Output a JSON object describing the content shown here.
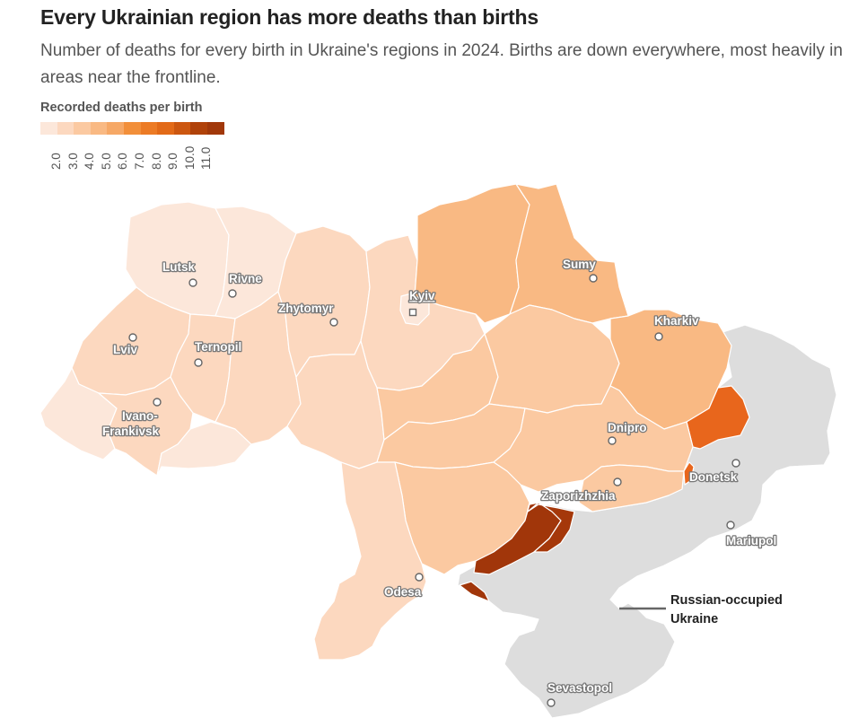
{
  "title": "Every Ukrainian region has more deaths than births",
  "subtitle": "Number of deaths for every birth in Ukraine's regions in 2024. Births are down everywhere, most heavily in areas near the frontline.",
  "legend": {
    "title": "Recorded deaths per birth",
    "ticks": [
      "2.0",
      "3.0",
      "4.0",
      "5.0",
      "6.0",
      "7.0",
      "8.0",
      "9.0",
      "10.0",
      "11.0"
    ],
    "colors": [
      "#fce7da",
      "#fcd8bf",
      "#fbc9a1",
      "#f9b983",
      "#f6a866",
      "#f28f3a",
      "#ec7b25",
      "#e26a18",
      "#cc5710",
      "#b0420a",
      "#a1380a"
    ]
  },
  "cities": {
    "lutsk": "Lutsk",
    "rivne": "Rivne",
    "zhytomyr": "Zhytomyr",
    "kyiv": "Kyiv",
    "sumy": "Sumy",
    "kharkiv": "Kharkiv",
    "lviv": "Lviv",
    "ternopil": "Ternopil",
    "ivano_line1": "Ivano-",
    "ivano_line2": "Frankivsk",
    "dnipro": "Dnipro",
    "donetsk": "Donetsk",
    "zaporizhzhia": "Zaporizhzhia",
    "mariupol": "Mariupol",
    "odesa": "Odesa",
    "sevastopol": "Sevastopol"
  },
  "annotation": {
    "line1": "Russian-occupied",
    "line2": "Ukraine"
  },
  "colors": {
    "occupied": "#dddddd",
    "lightest": "#fce7da",
    "light": "#fcd8bf",
    "mid": "#fbc9a1",
    "darker": "#f9b983",
    "donetsk": "#e8661c",
    "zaporizhzhia": "#a5380a",
    "kherson": "#a1360a"
  }
}
